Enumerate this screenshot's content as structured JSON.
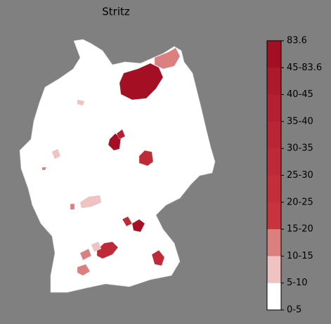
{
  "title": "Stritz",
  "legend": {
    "labels": [
      "83.6",
      "45-83.6",
      "40-45",
      "35-40",
      "30-35",
      "25-30",
      "20-25",
      "15-20",
      "10-15",
      "5-10",
      "0-5"
    ],
    "colors": [
      "#a50f24",
      "#ad1a2b",
      "#b41f31",
      "#ba2535",
      "#bf2a38",
      "#c42e3b",
      "#c8333e",
      "#dc7f7f",
      "#f0c2c2",
      "#ffffff"
    ]
  }
}
